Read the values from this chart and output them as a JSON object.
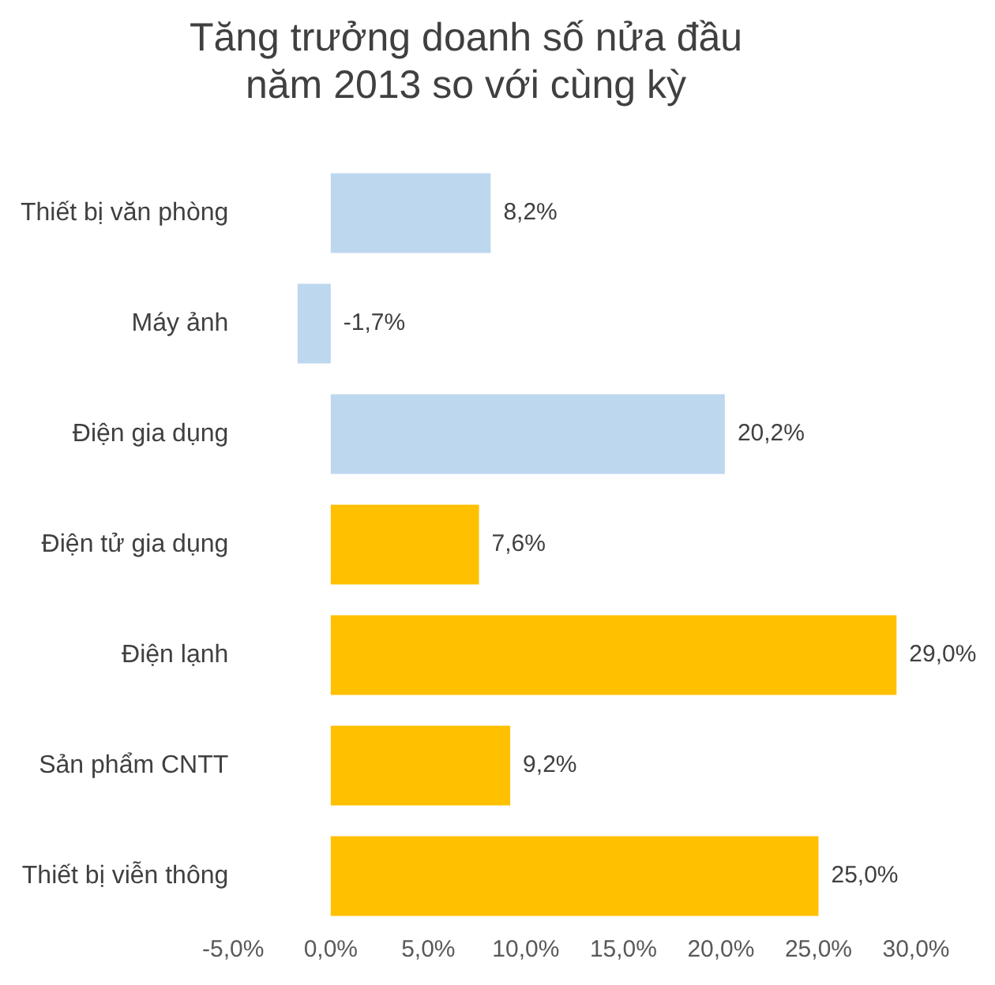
{
  "chart_data": {
    "type": "bar",
    "orientation": "horizontal",
    "title": "Tăng trưởng doanh số nửa đầu\nnăm 2013 so với cùng kỳ",
    "categories": [
      "Thiết bị văn phòng",
      "Máy ảnh",
      "Điện gia dụng",
      "Điện tử gia dụng",
      "Điện lạnh",
      "Sản phẩm CNTT",
      "Thiết bị viễn thông"
    ],
    "values": [
      8.2,
      -1.7,
      20.2,
      7.6,
      29.0,
      9.2,
      25.0
    ],
    "colors": [
      "#bdd7ee",
      "#bdd7ee",
      "#bdd7ee",
      "#ffc000",
      "#ffc000",
      "#ffc000",
      "#ffc000"
    ],
    "value_labels": [
      "8,2%",
      "-1,7%",
      "20,2%",
      "7,6%",
      "29,0%",
      "9,2%",
      "25,0%"
    ],
    "xlim": [
      -5,
      30
    ],
    "xticks": [
      {
        "value": -5,
        "label": "-5,0%"
      },
      {
        "value": 0,
        "label": "0,0%"
      },
      {
        "value": 5,
        "label": "5,0%"
      },
      {
        "value": 10,
        "label": "10,0%"
      },
      {
        "value": 15,
        "label": "15,0%"
      },
      {
        "value": 20,
        "label": "20,0%"
      },
      {
        "value": 25,
        "label": "25,0%"
      },
      {
        "value": 30,
        "label": "30,0%"
      }
    ],
    "grid": false,
    "legend": false
  }
}
